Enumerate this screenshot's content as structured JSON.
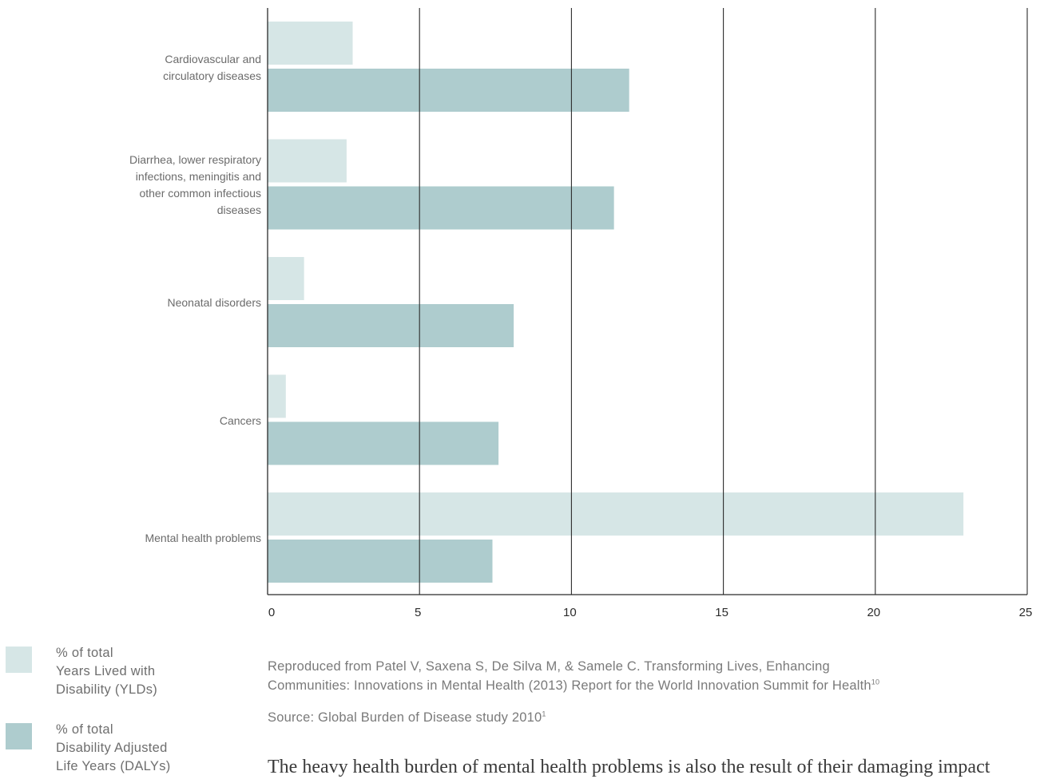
{
  "chart_data": {
    "type": "bar",
    "orientation": "horizontal",
    "categories": [
      "Cardiovascular and circulatory diseases",
      "Diarrhea, lower respiratory infections, meningitis and other common infectious diseases",
      "Neonatal disorders",
      "Cancers",
      "Mental health problems"
    ],
    "series": [
      {
        "name": "% of total Years Lived with Disability (YLDs)",
        "color": "#d6e6e6",
        "values": [
          2.8,
          2.6,
          1.2,
          0.6,
          22.9
        ]
      },
      {
        "name": "% of total Disability Adjusted Life Years (DALYs)",
        "color": "#aeccce",
        "values": [
          11.9,
          11.4,
          8.1,
          7.6,
          7.4
        ]
      }
    ],
    "xlim": [
      0,
      25
    ],
    "xticks": [
      0,
      5,
      10,
      15,
      20,
      25
    ],
    "grid": true,
    "legend_position": "bottom-left"
  },
  "labels": {
    "cat0": [
      "Cardiovascular and",
      "circulatory diseases"
    ],
    "cat1": [
      "Diarrhea, lower respiratory",
      "infections, meningitis and",
      "other common infectious",
      "diseases"
    ],
    "cat2": [
      "Neonatal disorders"
    ],
    "cat3": [
      "Cancers"
    ],
    "cat4": [
      "Mental health problems"
    ]
  },
  "legend": {
    "yld": [
      "% of total",
      "Years Lived with",
      "Disability (YLDs)"
    ],
    "daly": [
      "% of total",
      "Disability Adjusted",
      "Life Years (DALYs)"
    ]
  },
  "notes": {
    "reproduced_line1": "Reproduced from Patel V, Saxena S, De Silva M, & Samele C. Transforming Lives, Enhancing",
    "reproduced_line2": "Communities: Innovations in Mental Health (2013) Report for the World Innovation Summit for Health",
    "reproduced_ref": "10",
    "source": "Source: Global Burden of Disease study 2010",
    "source_ref": "1"
  },
  "body_text": "The heavy health burden of mental health problems is also the result of their damaging impact"
}
